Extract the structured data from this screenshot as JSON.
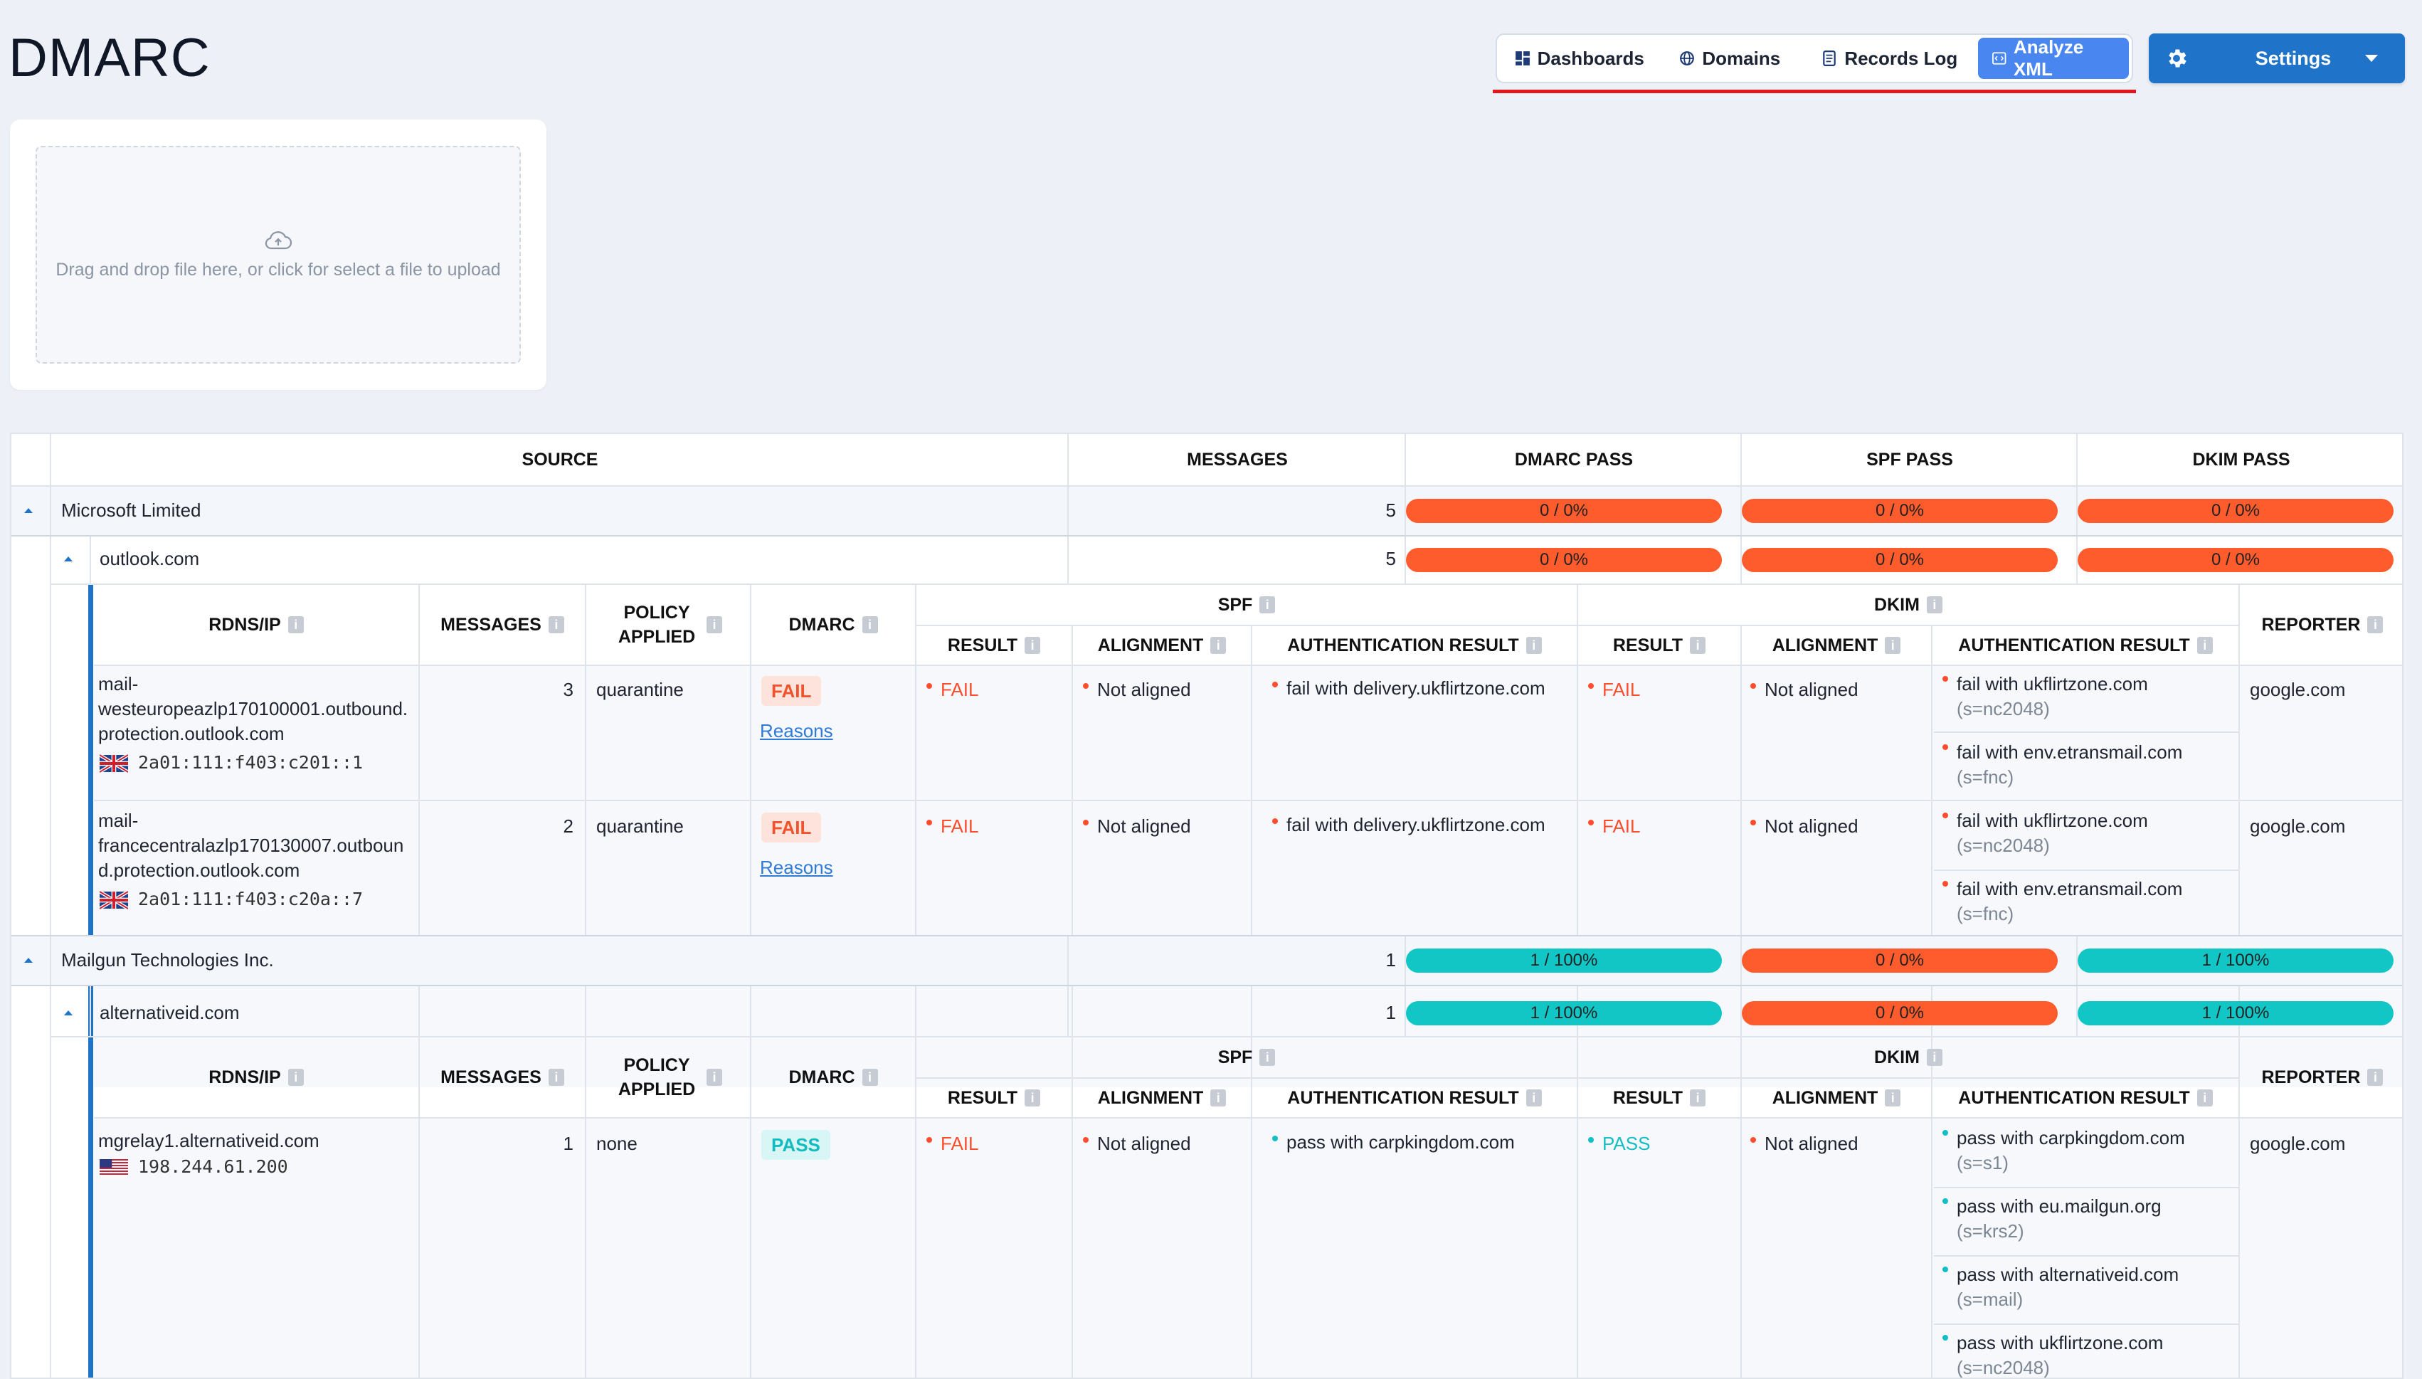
{
  "page_title": "DMARC",
  "tabs": [
    {
      "label": "Dashboards",
      "icon": "dashboard-icon"
    },
    {
      "label": "Domains",
      "icon": "globe-icon"
    },
    {
      "label": "Records Log",
      "icon": "list-icon"
    },
    {
      "label": "Analyze XML",
      "icon": "xml-icon",
      "active": true
    }
  ],
  "settings": {
    "label": "Settings",
    "icon": "gear-icon"
  },
  "upload": {
    "text": "Drag and drop file here, or click for select a file to upload",
    "icon": "cloud-upload-icon"
  },
  "table": {
    "columns": {
      "source": "SOURCE",
      "messages": "MESSAGES",
      "dmarc_pass": "DMARC PASS",
      "spf_pass": "SPF PASS",
      "dkim_pass": "DKIM PASS"
    },
    "detail_columns": {
      "rdns_ip": "RDNS/IP",
      "messages": "MESSAGES",
      "policy_applied": "POLICY APPLIED",
      "dmarc": "DMARC",
      "spf": "SPF",
      "dkim": "DKIM",
      "result": "RESULT",
      "alignment": "ALIGNMENT",
      "auth_result": "AUTHENTICATION RESULT",
      "reporter": "REPORTER"
    },
    "groups": [
      {
        "org": "Microsoft Limited",
        "messages": "5",
        "dmarc_pass": "0 / 0%",
        "spf_pass": "0 / 0%",
        "dkim_pass": "0 / 0%",
        "domain": {
          "name": "outlook.com",
          "messages": "5",
          "dmarc_pass": "0 / 0%",
          "spf_pass": "0 / 0%",
          "dkim_pass": "0 / 0%"
        },
        "records": [
          {
            "rdns": "mail-westeuropeazlp170100001.outbound.protection.outlook.com",
            "rdns_lines": [
              "mail-",
              "westeuropeazlp170100001.outbound.",
              "protection.outlook.com"
            ],
            "ip": "2a01:111:f403:c201::1",
            "flag": "uk-flag-icon",
            "messages": "3",
            "policy": "quarantine",
            "dmarc": "FAIL",
            "reasons": "Reasons",
            "spf_result": "FAIL",
            "spf_alignment": "Not aligned",
            "spf_auth": "fail with delivery.ukflirtzone.com",
            "dkim_result": "FAIL",
            "dkim_alignment": "Not aligned",
            "dkim_auth": [
              {
                "text": "fail with ukflirtzone.com",
                "selector": "(s=nc2048)"
              },
              {
                "text": "fail with env.etransmail.com",
                "selector": "(s=fnc)"
              }
            ],
            "reporter": "google.com"
          },
          {
            "rdns": "mail-francecentralazlp170130007.outbound.protection.outlook.com",
            "rdns_lines": [
              "mail-",
              "francecentralazlp170130007.outboun",
              "d.protection.outlook.com"
            ],
            "ip": "2a01:111:f403:c20a::7",
            "flag": "uk-flag-icon",
            "messages": "2",
            "policy": "quarantine",
            "dmarc": "FAIL",
            "reasons": "Reasons",
            "spf_result": "FAIL",
            "spf_alignment": "Not aligned",
            "spf_auth": "fail with delivery.ukflirtzone.com",
            "dkim_result": "FAIL",
            "dkim_alignment": "Not aligned",
            "dkim_auth": [
              {
                "text": "fail with ukflirtzone.com",
                "selector": "(s=nc2048)"
              },
              {
                "text": "fail with env.etransmail.com",
                "selector": "(s=fnc)"
              }
            ],
            "reporter": "google.com"
          }
        ]
      },
      {
        "org": "Mailgun Technologies Inc.",
        "messages": "1",
        "dmarc_pass": "1 / 100%",
        "spf_pass": "0 / 0%",
        "dkim_pass": "1 / 100%",
        "domain": {
          "name": "alternativeid.com",
          "messages": "1",
          "dmarc_pass": "1 / 100%",
          "spf_pass": "0 / 0%",
          "dkim_pass": "1 / 100%"
        },
        "records": [
          {
            "rdns": "mgrelay1.alternativeid.com",
            "ip": "198.244.61.200",
            "flag": "us-flag-icon",
            "messages": "1",
            "policy": "none",
            "dmarc": "PASS",
            "spf_result": "FAIL",
            "spf_alignment": "Not aligned",
            "spf_auth": "pass with carpkingdom.com",
            "dkim_result": "PASS",
            "dkim_alignment": "Not aligned",
            "dkim_auth": [
              {
                "text": "pass with carpkingdom.com",
                "selector": "(s=s1)"
              },
              {
                "text": "pass with eu.mailgun.org",
                "selector": "(s=krs2)"
              },
              {
                "text": "pass with alternativeid.com",
                "selector": "(s=mail)"
              },
              {
                "text": "pass with ukflirtzone.com",
                "selector": "(s=nc2048)"
              }
            ],
            "reporter": "google.com"
          }
        ]
      }
    ]
  },
  "colors": {
    "fail": "#ff5c2e",
    "pass": "#12c6c6",
    "accent": "#1f73c8",
    "active_tab": "#4a86f0",
    "underline": "#e0171f"
  }
}
